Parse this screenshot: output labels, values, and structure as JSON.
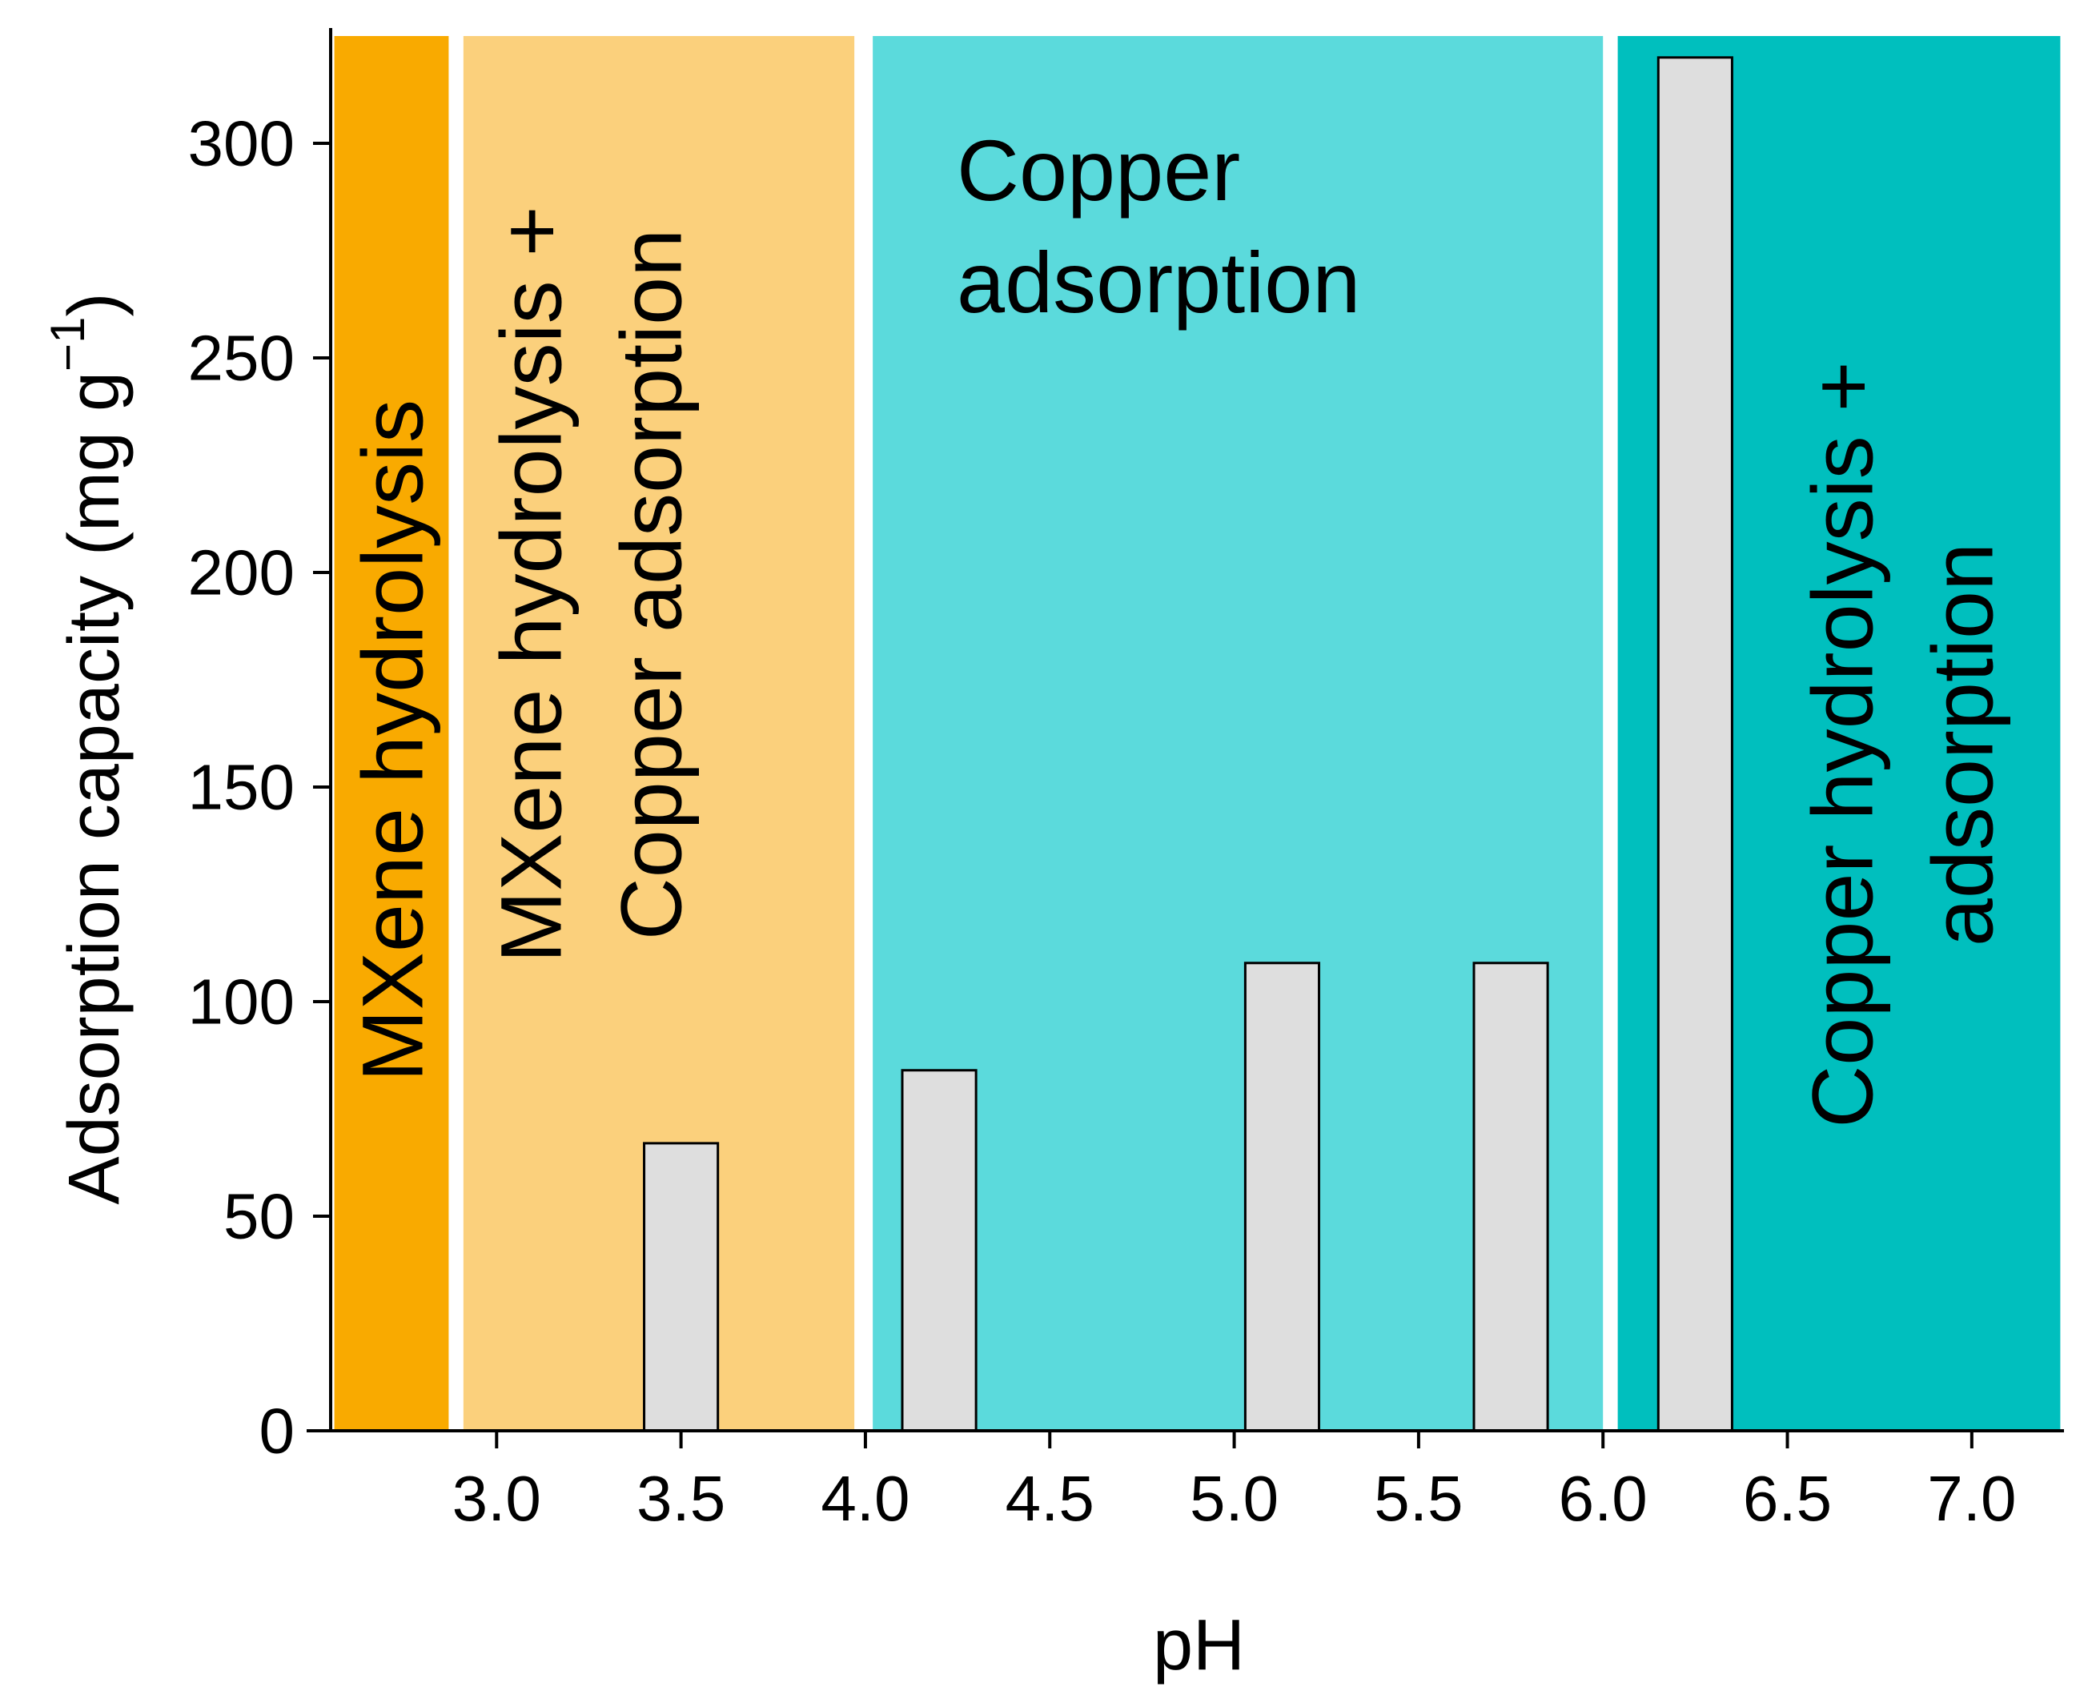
{
  "chart_data": {
    "type": "bar",
    "title": "",
    "xlabel": "pH",
    "ylabel": "Adsorption capacity (mg g",
    "ylabel_superscript": "−1",
    "ylabel_close": ")",
    "xlim": [
      2.55,
      7.25
    ],
    "ylim": [
      0,
      325
    ],
    "xticks": [
      3.0,
      3.5,
      4.0,
      4.5,
      5.0,
      5.5,
      6.0,
      6.5,
      7.0
    ],
    "xtick_labels": [
      "3.0",
      "3.5",
      "4.0",
      "4.5",
      "5.0",
      "5.5",
      "6.0",
      "6.5",
      "7.0"
    ],
    "yticks": [
      0,
      50,
      100,
      150,
      200,
      250,
      300
    ],
    "ytick_labels": [
      "0",
      "50",
      "100",
      "150",
      "200",
      "250",
      "300"
    ],
    "bar_width_ph": 0.2,
    "bar_color": "#dedede",
    "bars": [
      {
        "x": 3.5,
        "value": 67
      },
      {
        "x": 4.2,
        "value": 84
      },
      {
        "x": 5.13,
        "value": 109
      },
      {
        "x": 5.75,
        "value": 109
      },
      {
        "x": 6.25,
        "value": 320
      }
    ],
    "regions": [
      {
        "from": 2.56,
        "to": 2.87,
        "color": "#f9aa00",
        "label_lines": [
          "MXene hydrolysis"
        ],
        "orientation": "vertical"
      },
      {
        "from": 2.91,
        "to": 3.97,
        "color": "#fbd07c",
        "label_lines": [
          "MXene hydrolysis +",
          "Copper adsorption"
        ],
        "orientation": "vertical"
      },
      {
        "from": 4.02,
        "to": 6.0,
        "color": "#5bdadc",
        "label_lines": [
          "Copper",
          "adsorption"
        ],
        "orientation": "horizontal"
      },
      {
        "from": 6.04,
        "to": 7.24,
        "color": "#00bfbe",
        "label_lines": [
          "Copper hydrolysis +",
          "adsorption"
        ],
        "orientation": "vertical"
      }
    ]
  }
}
